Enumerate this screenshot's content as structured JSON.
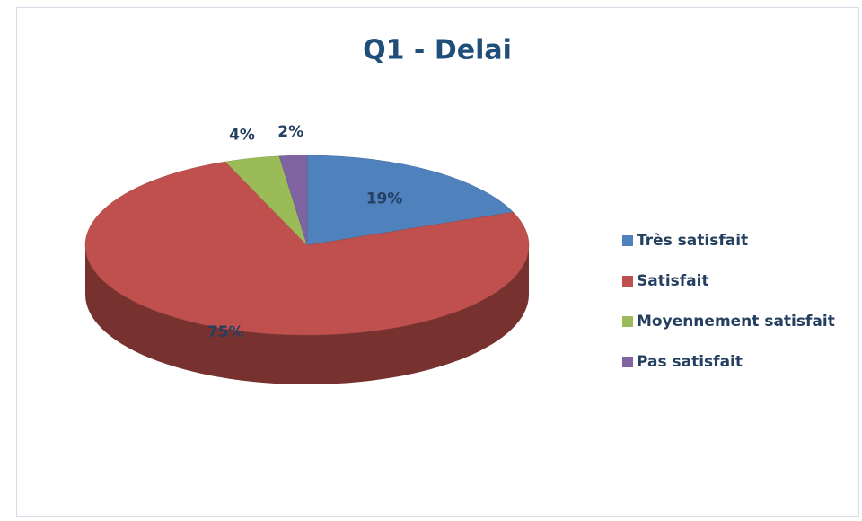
{
  "chart_data": {
    "type": "pie",
    "title": "Q1 - Delai",
    "categories": [
      "Très satisfait",
      "Satisfait",
      "Moyennement satisfait",
      "Pas satisfait"
    ],
    "values": [
      19,
      75,
      4,
      2
    ],
    "value_labels": [
      "19%",
      "75%",
      "4%",
      "2%"
    ],
    "colors": [
      "#4f81bd",
      "#c0504d",
      "#9bbb59",
      "#8064a2"
    ],
    "legend": "right"
  }
}
